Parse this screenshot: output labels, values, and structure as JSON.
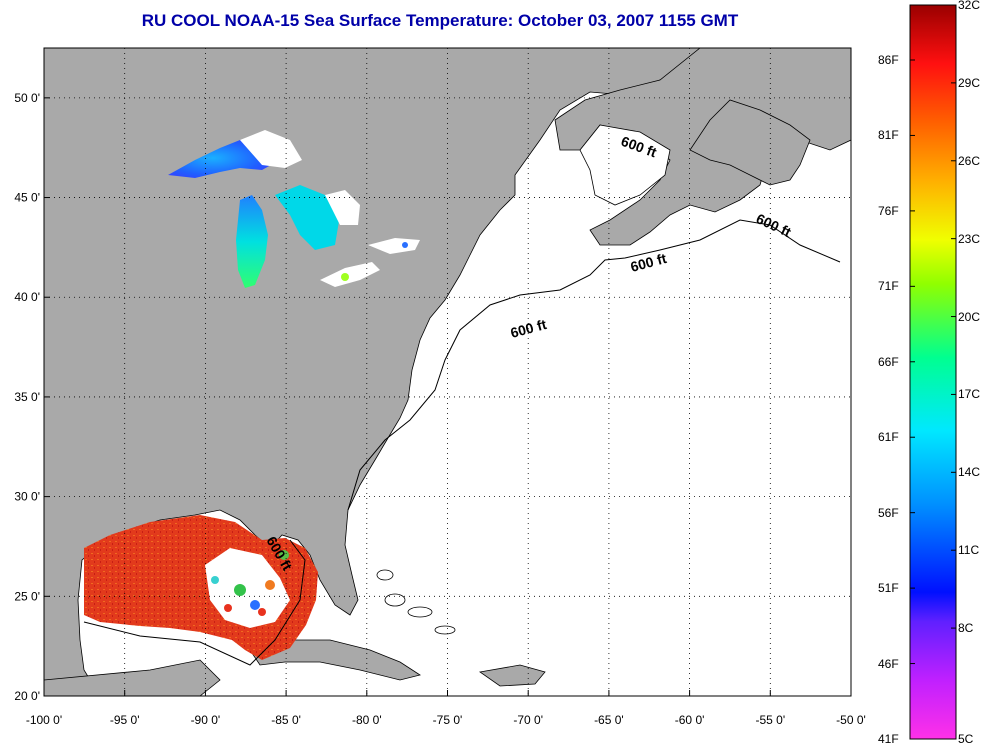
{
  "title": "RU COOL  NOAA-15  Sea Surface Temperature:  October 03, 2007 1155 GMT",
  "colors": {
    "land": "#a9a9a9",
    "ocean": "#ffffff",
    "title": "#0000a8",
    "warm_sst": "#e8321e"
  },
  "axes": {
    "lon_labels": [
      "-100 0'",
      "-95 0'",
      "-90 0'",
      "-85 0'",
      "-80 0'",
      "-75 0'",
      "-70 0'",
      "-65 0'",
      "-60 0'",
      "-55 0'",
      "-50 0'"
    ],
    "lat_labels": [
      "50 0'",
      "45 0'",
      "40 0'",
      "35 0'",
      "30 0'",
      "25 0'",
      "20 0'"
    ],
    "lon_range": [
      -100,
      -50
    ],
    "lat_range": [
      20,
      52.5
    ],
    "grid": "dotted"
  },
  "contour_labels": [
    "600 ft",
    "600 ft",
    "600 ft",
    "600 ft",
    "600 ft"
  ],
  "colorbar": {
    "celsius": [
      "32C",
      "29C",
      "26C",
      "23C",
      "20C",
      "17C",
      "14C",
      "11C",
      "8C",
      "5C"
    ],
    "fahrenheit": [
      "86F",
      "81F",
      "76F",
      "71F",
      "66F",
      "61F",
      "56F",
      "51F",
      "46F",
      "41F"
    ],
    "range_c": [
      5,
      32
    ]
  }
}
